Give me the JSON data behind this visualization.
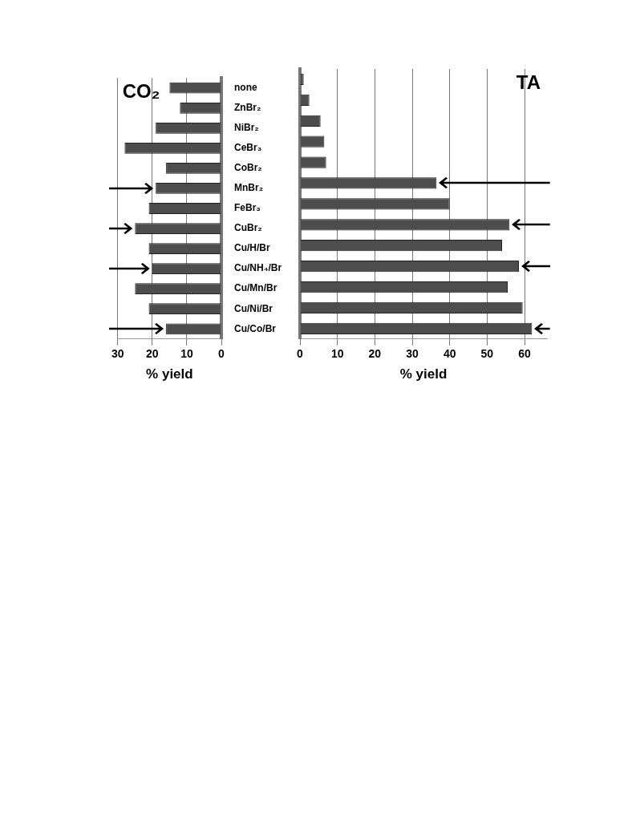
{
  "chart_data": [
    {
      "type": "bar",
      "orientation": "horizontal",
      "title": "CO₂",
      "xlabel": "% yield",
      "categories": [
        "none",
        "ZnBr₂",
        "NiBr₂",
        "CeBr₃",
        "CoBr₂",
        "MnBr₂",
        "FeBr₃",
        "CuBr₂",
        "Cu/H/Br",
        "Cu/NH₄/Br",
        "Cu/Mn/Br",
        "Cu/Ni/Br",
        "Cu/Co/Br"
      ],
      "series": [
        {
          "color": "#4d4d4d",
          "values": [
            15,
            12,
            19,
            28,
            16,
            19,
            21,
            25,
            21,
            20,
            25,
            21,
            16
          ]
        }
      ],
      "xlim": [
        30,
        0
      ],
      "xticks": [
        30,
        20,
        10,
        0
      ],
      "grid": "x",
      "legend": false
    },
    {
      "type": "bar",
      "orientation": "horizontal",
      "title": "TA",
      "xlabel": "% yield",
      "categories": [
        null,
        null,
        null,
        null,
        null,
        null,
        null,
        null,
        null,
        null,
        null,
        null,
        null
      ],
      "series": [
        {
          "color": "#4d4d4d",
          "values": [
            1,
            2.5,
            5.5,
            6.5,
            7,
            36.5,
            40,
            56,
            54,
            58.5,
            55.5,
            59.5,
            62
          ]
        }
      ],
      "xlim": [
        0,
        66
      ],
      "xticks": [
        0,
        10,
        20,
        30,
        40,
        50,
        60
      ],
      "grid": "x",
      "legend": false,
      "tick_labels": "x"
    }
  ]
}
